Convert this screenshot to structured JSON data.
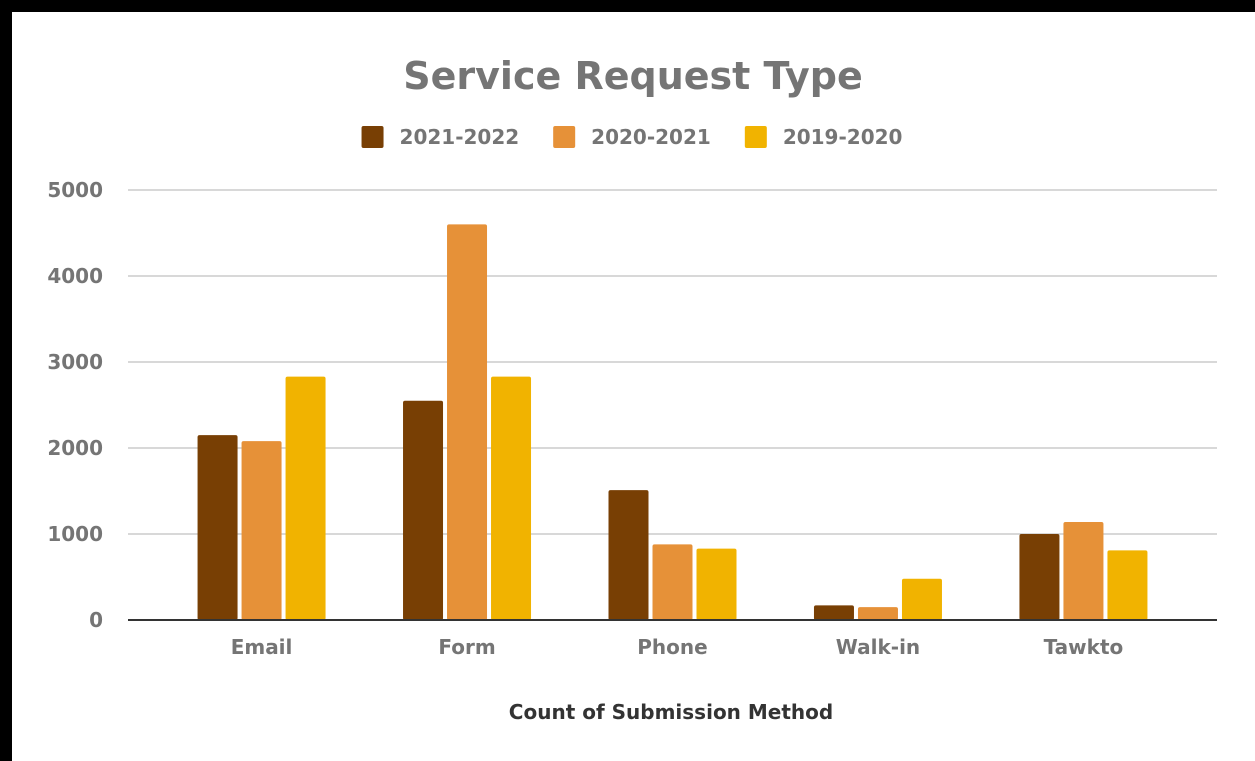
{
  "chart_data": {
    "type": "bar",
    "title": "Service Request Type",
    "xlabel": "Count of Submission Method",
    "ylabel": "",
    "categories": [
      "Email",
      "Form",
      "Phone",
      "Walk-in",
      "Tawkto"
    ],
    "series": [
      {
        "name": "2021-2022",
        "color": "#783f04",
        "values": [
          2150,
          2550,
          1510,
          170,
          1000
        ]
      },
      {
        "name": "2020-2021",
        "color": "#e69138",
        "values": [
          2080,
          4600,
          880,
          150,
          1140
        ]
      },
      {
        "name": "2019-2020",
        "color": "#f1b300",
        "values": [
          2830,
          2830,
          830,
          480,
          810
        ]
      }
    ],
    "ylim": [
      0,
      5000
    ],
    "yticks": [
      0,
      1000,
      2000,
      3000,
      4000,
      5000
    ],
    "grid": true,
    "legend_position": "top"
  }
}
